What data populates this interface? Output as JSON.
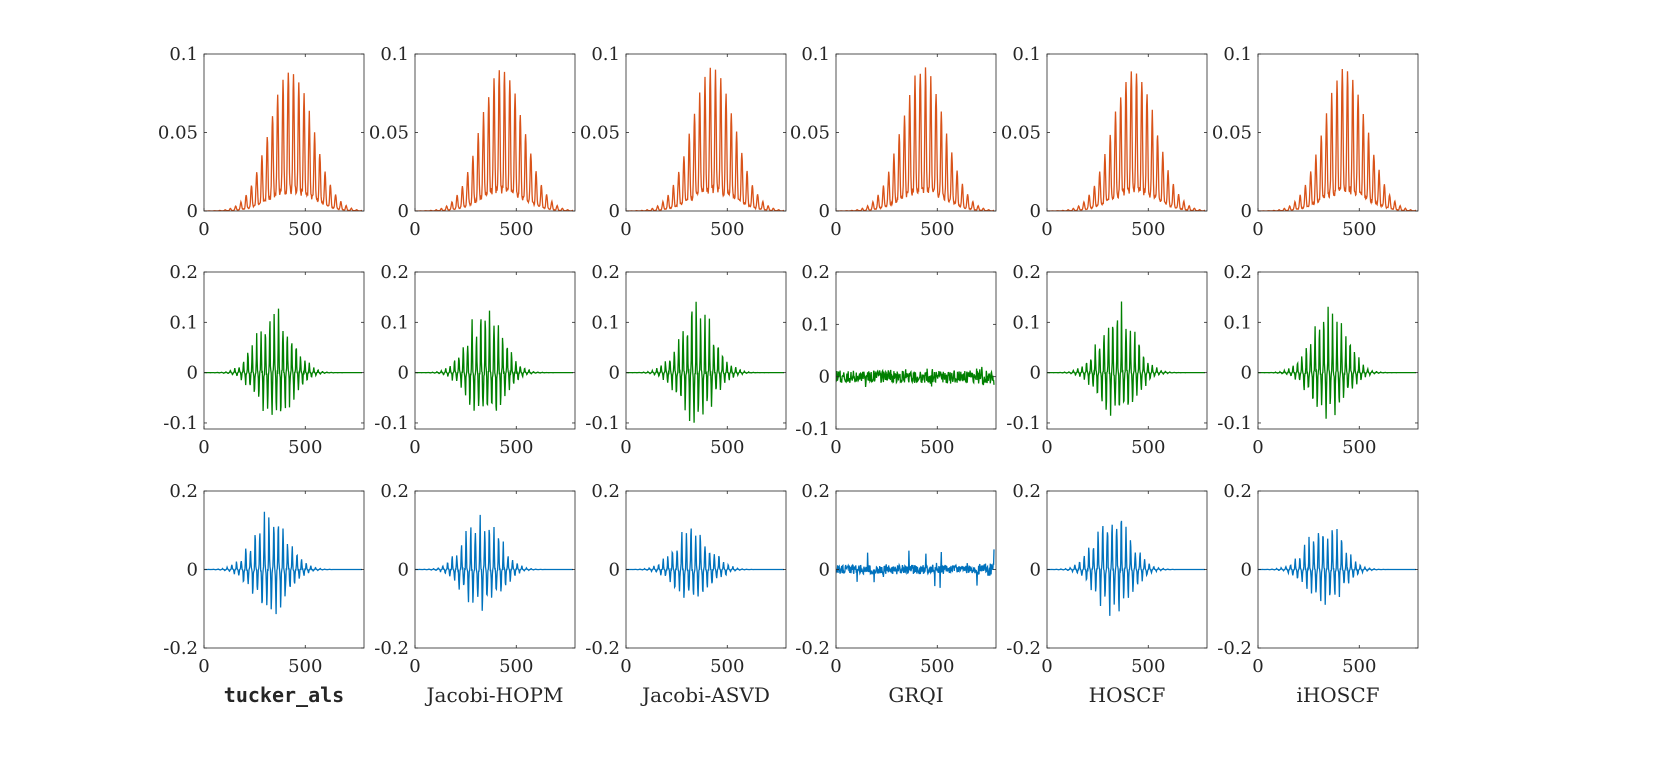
{
  "chart_data": {
    "type": "line",
    "layout": "small multiples, 3 rows x 6 columns",
    "methods": [
      "tucker_als",
      "Jacobi-HOPM",
      "Jacobi-ASVD",
      "GRQI",
      "HOSCF",
      "iHOSCF"
    ],
    "xlim": [
      0,
      790
    ],
    "xticks": [
      0,
      500
    ],
    "x_tick_labels": [
      "0",
      "500"
    ],
    "rows": [
      {
        "name": "row-1",
        "color": "#D95319",
        "yticks": [
          0,
          0.05,
          0.1
        ],
        "y_tick_labels": [
          "0",
          "0.05",
          "0.1"
        ],
        "panels": [
          {
            "method": "tucker_als",
            "ylim": [
              0,
              0.1
            ],
            "signal": {
              "kind": "positive",
              "amp": 0.09,
              "center": 430,
              "width": 150,
              "spikes": 30,
              "sign": 1,
              "noise": 0
            }
          },
          {
            "method": "Jacobi-HOPM",
            "ylim": [
              0,
              0.1
            ],
            "signal": {
              "kind": "positive",
              "amp": 0.09,
              "center": 430,
              "width": 150,
              "spikes": 30,
              "sign": 1,
              "noise": 0
            }
          },
          {
            "method": "Jacobi-ASVD",
            "ylim": [
              0,
              0.1
            ],
            "signal": {
              "kind": "positive",
              "amp": 0.09,
              "center": 430,
              "width": 150,
              "spikes": 30,
              "sign": 1,
              "noise": 0
            }
          },
          {
            "method": "GRQI",
            "ylim": [
              0,
              0.1
            ],
            "signal": {
              "kind": "positive",
              "amp": 0.09,
              "center": 430,
              "width": 150,
              "spikes": 30,
              "sign": 1,
              "noise": 0
            }
          },
          {
            "method": "HOSCF",
            "ylim": [
              0,
              0.1
            ],
            "signal": {
              "kind": "positive",
              "amp": 0.09,
              "center": 430,
              "width": 150,
              "spikes": 30,
              "sign": 1,
              "noise": 0
            }
          },
          {
            "method": "iHOSCF",
            "ylim": [
              0,
              0.1
            ],
            "signal": {
              "kind": "positive",
              "amp": 0.09,
              "center": 430,
              "width": 150,
              "spikes": 30,
              "sign": 1,
              "noise": 0
            }
          }
        ]
      },
      {
        "name": "row-2",
        "color": "#008000",
        "yticks": [
          -0.1,
          0,
          0.1,
          0.2
        ],
        "y_tick_labels": [
          "-0.1",
          "0",
          "0.1",
          "0.2"
        ],
        "panels": [
          {
            "method": "tucker_als",
            "ylim": [
              -0.112,
              0.2
            ],
            "signal": {
              "kind": "oscillating",
              "amp": 0.15,
              "center": 350,
              "width": 120,
              "spikes": 36,
              "sign": 1,
              "noise": 0
            }
          },
          {
            "method": "Jacobi-HOPM",
            "ylim": [
              -0.112,
              0.2
            ],
            "signal": {
              "kind": "oscillating",
              "amp": 0.15,
              "center": 350,
              "width": 120,
              "spikes": 36,
              "sign": 1,
              "noise": 0
            }
          },
          {
            "method": "Jacobi-ASVD",
            "ylim": [
              -0.112,
              0.2
            ],
            "signal": {
              "kind": "oscillating",
              "amp": 0.15,
              "center": 350,
              "width": 120,
              "spikes": 36,
              "sign": 1,
              "noise": 0
            }
          },
          {
            "method": "GRQI",
            "ylim": [
              -0.1,
              0.2
            ],
            "signal": {
              "kind": "noise",
              "amp": 0.02,
              "center": 400,
              "width": 400,
              "spikes": 0,
              "sign": 1,
              "noise": 0.012
            }
          },
          {
            "method": "HOSCF",
            "ylim": [
              -0.112,
              0.2
            ],
            "signal": {
              "kind": "oscillating",
              "amp": 0.15,
              "center": 350,
              "width": 120,
              "spikes": 36,
              "sign": 1,
              "noise": 0
            }
          },
          {
            "method": "iHOSCF",
            "ylim": [
              -0.112,
              0.2
            ],
            "signal": {
              "kind": "oscillating",
              "amp": 0.14,
              "center": 350,
              "width": 120,
              "spikes": 36,
              "sign": 1,
              "noise": 0
            }
          }
        ]
      },
      {
        "name": "row-3",
        "color": "#0072BD",
        "yticks": [
          -0.2,
          0,
          0.2
        ],
        "y_tick_labels": [
          "-0.2",
          "0",
          "0.2"
        ],
        "panels": [
          {
            "method": "tucker_als",
            "ylim": [
              -0.2,
              0.2
            ],
            "signal": {
              "kind": "oscillating",
              "amp": 0.17,
              "center": 330,
              "width": 120,
              "spikes": 34,
              "sign": 1,
              "noise": 0
            }
          },
          {
            "method": "Jacobi-HOPM",
            "ylim": [
              -0.2,
              0.2
            ],
            "signal": {
              "kind": "oscillating",
              "amp": 0.16,
              "center": 330,
              "width": 120,
              "spikes": 34,
              "sign": 1,
              "noise": 0
            }
          },
          {
            "method": "Jacobi-ASVD",
            "ylim": [
              -0.2,
              0.2
            ],
            "signal": {
              "kind": "oscillating",
              "amp": 0.13,
              "center": 330,
              "width": 120,
              "spikes": 34,
              "sign": 1,
              "noise": 0
            }
          },
          {
            "method": "GRQI",
            "ylim": [
              -0.2,
              0.2
            ],
            "signal": {
              "kind": "noise",
              "amp": 0.05,
              "center": 400,
              "width": 400,
              "spikes": 0,
              "sign": 1,
              "noise": 0.012
            }
          },
          {
            "method": "HOSCF",
            "ylim": [
              -0.2,
              0.2
            ],
            "signal": {
              "kind": "oscillating",
              "amp": 0.17,
              "center": 330,
              "width": 120,
              "spikes": 34,
              "sign": 1,
              "noise": 0
            }
          },
          {
            "method": "iHOSCF",
            "ylim": [
              -0.2,
              0.2
            ],
            "signal": {
              "kind": "oscillating",
              "amp": 0.135,
              "center": 330,
              "width": 120,
              "spikes": 34,
              "sign": 1,
              "noise": 0
            }
          }
        ]
      }
    ]
  }
}
